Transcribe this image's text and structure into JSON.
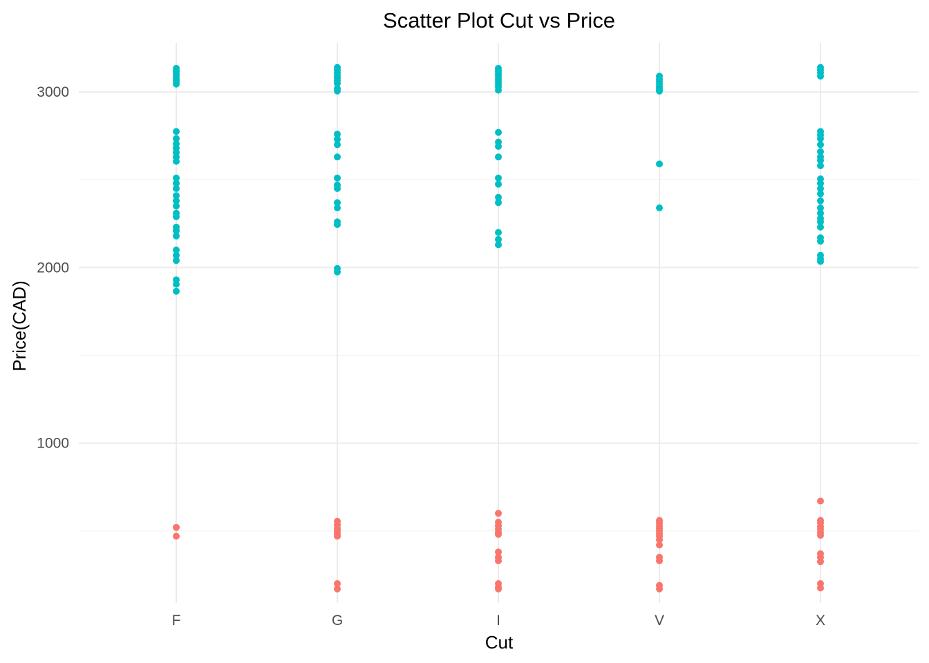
{
  "chart_data": {
    "type": "scatter",
    "title": "Scatter Plot Cut vs Price",
    "xlabel": "Cut",
    "ylabel": "Price(CAD)",
    "categories": [
      "F",
      "G",
      "I",
      "V",
      "X"
    ],
    "ylim": [
      90,
      3280
    ],
    "yticks": [
      1000,
      2000,
      3000
    ],
    "yticks_minor": [
      500,
      1500,
      2500
    ],
    "grid": true,
    "legend": "none",
    "series": [
      {
        "color": "#F8766D",
        "points": [
          {
            "x": "F",
            "y": 520
          },
          {
            "x": "F",
            "y": 470
          },
          {
            "x": "G",
            "y": 555
          },
          {
            "x": "G",
            "y": 535
          },
          {
            "x": "G",
            "y": 515
          },
          {
            "x": "G",
            "y": 500
          },
          {
            "x": "G",
            "y": 485
          },
          {
            "x": "G",
            "y": 470
          },
          {
            "x": "G",
            "y": 200
          },
          {
            "x": "G",
            "y": 170
          },
          {
            "x": "I",
            "y": 600
          },
          {
            "x": "I",
            "y": 550
          },
          {
            "x": "I",
            "y": 530
          },
          {
            "x": "I",
            "y": 510
          },
          {
            "x": "I",
            "y": 490
          },
          {
            "x": "I",
            "y": 480
          },
          {
            "x": "I",
            "y": 380
          },
          {
            "x": "I",
            "y": 350
          },
          {
            "x": "I",
            "y": 330
          },
          {
            "x": "I",
            "y": 200
          },
          {
            "x": "I",
            "y": 180
          },
          {
            "x": "I",
            "y": 170
          },
          {
            "x": "V",
            "y": 560
          },
          {
            "x": "V",
            "y": 545
          },
          {
            "x": "V",
            "y": 530
          },
          {
            "x": "V",
            "y": 515
          },
          {
            "x": "V",
            "y": 500
          },
          {
            "x": "V",
            "y": 485
          },
          {
            "x": "V",
            "y": 470
          },
          {
            "x": "V",
            "y": 450
          },
          {
            "x": "V",
            "y": 420
          },
          {
            "x": "V",
            "y": 350
          },
          {
            "x": "V",
            "y": 330
          },
          {
            "x": "V",
            "y": 190
          },
          {
            "x": "V",
            "y": 170
          },
          {
            "x": "X",
            "y": 670
          },
          {
            "x": "X",
            "y": 560
          },
          {
            "x": "X",
            "y": 545
          },
          {
            "x": "X",
            "y": 525
          },
          {
            "x": "X",
            "y": 510
          },
          {
            "x": "X",
            "y": 490
          },
          {
            "x": "X",
            "y": 475
          },
          {
            "x": "X",
            "y": 370
          },
          {
            "x": "X",
            "y": 350
          },
          {
            "x": "X",
            "y": 325
          },
          {
            "x": "X",
            "y": 200
          },
          {
            "x": "X",
            "y": 175
          }
        ]
      },
      {
        "color": "#00BFC4",
        "points": [
          {
            "x": "F",
            "y": 3135
          },
          {
            "x": "F",
            "y": 3120
          },
          {
            "x": "F",
            "y": 3105
          },
          {
            "x": "F",
            "y": 3090
          },
          {
            "x": "F",
            "y": 3075
          },
          {
            "x": "F",
            "y": 3060
          },
          {
            "x": "F",
            "y": 3045
          },
          {
            "x": "F",
            "y": 2775
          },
          {
            "x": "F",
            "y": 2735
          },
          {
            "x": "F",
            "y": 2705
          },
          {
            "x": "F",
            "y": 2680
          },
          {
            "x": "F",
            "y": 2655
          },
          {
            "x": "F",
            "y": 2630
          },
          {
            "x": "F",
            "y": 2605
          },
          {
            "x": "F",
            "y": 2510
          },
          {
            "x": "F",
            "y": 2480
          },
          {
            "x": "F",
            "y": 2450
          },
          {
            "x": "F",
            "y": 2410
          },
          {
            "x": "F",
            "y": 2380
          },
          {
            "x": "F",
            "y": 2350
          },
          {
            "x": "F",
            "y": 2310
          },
          {
            "x": "F",
            "y": 2290
          },
          {
            "x": "F",
            "y": 2230
          },
          {
            "x": "F",
            "y": 2210
          },
          {
            "x": "F",
            "y": 2180
          },
          {
            "x": "F",
            "y": 2100
          },
          {
            "x": "F",
            "y": 2070
          },
          {
            "x": "F",
            "y": 2040
          },
          {
            "x": "F",
            "y": 1930
          },
          {
            "x": "F",
            "y": 1905
          },
          {
            "x": "F",
            "y": 1865
          },
          {
            "x": "G",
            "y": 3140
          },
          {
            "x": "G",
            "y": 3125
          },
          {
            "x": "G",
            "y": 3110
          },
          {
            "x": "G",
            "y": 3095
          },
          {
            "x": "G",
            "y": 3080
          },
          {
            "x": "G",
            "y": 3065
          },
          {
            "x": "G",
            "y": 3050
          },
          {
            "x": "G",
            "y": 3020
          },
          {
            "x": "G",
            "y": 3005
          },
          {
            "x": "G",
            "y": 2760
          },
          {
            "x": "G",
            "y": 2730
          },
          {
            "x": "G",
            "y": 2700
          },
          {
            "x": "G",
            "y": 2630
          },
          {
            "x": "G",
            "y": 2510
          },
          {
            "x": "G",
            "y": 2470
          },
          {
            "x": "G",
            "y": 2450
          },
          {
            "x": "G",
            "y": 2370
          },
          {
            "x": "G",
            "y": 2340
          },
          {
            "x": "G",
            "y": 2260
          },
          {
            "x": "G",
            "y": 2245
          },
          {
            "x": "G",
            "y": 1995
          },
          {
            "x": "G",
            "y": 1975
          },
          {
            "x": "I",
            "y": 3135
          },
          {
            "x": "I",
            "y": 3120
          },
          {
            "x": "I",
            "y": 3105
          },
          {
            "x": "I",
            "y": 3090
          },
          {
            "x": "I",
            "y": 3075
          },
          {
            "x": "I",
            "y": 3060
          },
          {
            "x": "I",
            "y": 3045
          },
          {
            "x": "I",
            "y": 3030
          },
          {
            "x": "I",
            "y": 3010
          },
          {
            "x": "I",
            "y": 2770
          },
          {
            "x": "I",
            "y": 2715
          },
          {
            "x": "I",
            "y": 2690
          },
          {
            "x": "I",
            "y": 2630
          },
          {
            "x": "I",
            "y": 2510
          },
          {
            "x": "I",
            "y": 2475
          },
          {
            "x": "I",
            "y": 2400
          },
          {
            "x": "I",
            "y": 2370
          },
          {
            "x": "I",
            "y": 2200
          },
          {
            "x": "I",
            "y": 2160
          },
          {
            "x": "I",
            "y": 2130
          },
          {
            "x": "V",
            "y": 3090
          },
          {
            "x": "V",
            "y": 3075
          },
          {
            "x": "V",
            "y": 3060
          },
          {
            "x": "V",
            "y": 3045
          },
          {
            "x": "V",
            "y": 3030
          },
          {
            "x": "V",
            "y": 3015
          },
          {
            "x": "V",
            "y": 3005
          },
          {
            "x": "V",
            "y": 2590
          },
          {
            "x": "V",
            "y": 2340
          },
          {
            "x": "X",
            "y": 3140
          },
          {
            "x": "X",
            "y": 3125
          },
          {
            "x": "X",
            "y": 3110
          },
          {
            "x": "X",
            "y": 3090
          },
          {
            "x": "X",
            "y": 2775
          },
          {
            "x": "X",
            "y": 2755
          },
          {
            "x": "X",
            "y": 2735
          },
          {
            "x": "X",
            "y": 2700
          },
          {
            "x": "X",
            "y": 2660
          },
          {
            "x": "X",
            "y": 2630
          },
          {
            "x": "X",
            "y": 2610
          },
          {
            "x": "X",
            "y": 2580
          },
          {
            "x": "X",
            "y": 2505
          },
          {
            "x": "X",
            "y": 2480
          },
          {
            "x": "X",
            "y": 2450
          },
          {
            "x": "X",
            "y": 2420
          },
          {
            "x": "X",
            "y": 2380
          },
          {
            "x": "X",
            "y": 2340
          },
          {
            "x": "X",
            "y": 2310
          },
          {
            "x": "X",
            "y": 2280
          },
          {
            "x": "X",
            "y": 2260
          },
          {
            "x": "X",
            "y": 2230
          },
          {
            "x": "X",
            "y": 2170
          },
          {
            "x": "X",
            "y": 2150
          },
          {
            "x": "X",
            "y": 2070
          },
          {
            "x": "X",
            "y": 2050
          },
          {
            "x": "X",
            "y": 2035
          }
        ]
      }
    ]
  }
}
